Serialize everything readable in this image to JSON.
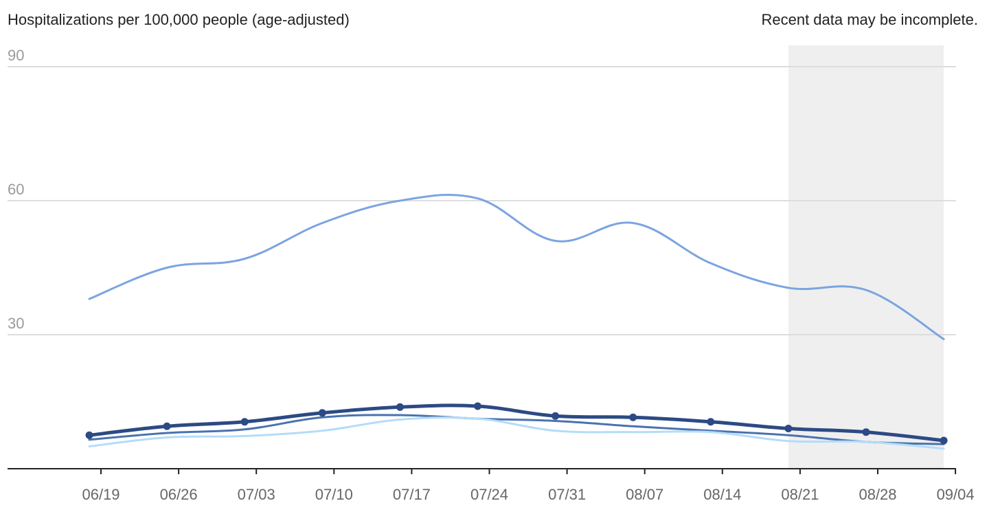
{
  "header": {
    "ylabel": "Hospitalizations per 100,000 people (age-adjusted)",
    "note": "Recent data may be incomplete."
  },
  "chart_data": {
    "type": "line",
    "ylim": [
      0,
      90
    ],
    "yticks": [
      30,
      60,
      90
    ],
    "grid": true,
    "x": [
      "06/18",
      "06/25",
      "07/02",
      "07/09",
      "07/16",
      "07/23",
      "07/30",
      "08/06",
      "08/13",
      "08/20",
      "08/27",
      "09/03"
    ],
    "xticks": [
      "06/19",
      "06/26",
      "07/03",
      "07/10",
      "07/17",
      "07/24",
      "07/31",
      "08/07",
      "08/14",
      "08/21",
      "08/28",
      "09/04"
    ],
    "incomplete_range": [
      "08/20",
      "09/03"
    ],
    "series": [
      {
        "color": "#7ba4e0",
        "width": 3,
        "markers": false,
        "values": [
          38.0,
          45.0,
          47.0,
          55.0,
          60.0,
          60.5,
          51.0,
          55.0,
          46.0,
          40.5,
          40.0,
          29.0
        ]
      },
      {
        "color": "#4a72b0",
        "width": 3,
        "markers": false,
        "values": [
          6.5,
          8.0,
          8.8,
          11.5,
          12.0,
          11.2,
          10.7,
          9.5,
          8.5,
          7.5,
          6.0,
          5.5
        ]
      },
      {
        "color": "#b3dcfa",
        "width": 3,
        "markers": false,
        "values": [
          5.0,
          7.0,
          7.3,
          8.5,
          11.0,
          11.2,
          8.5,
          8.2,
          8.2,
          6.2,
          6.0,
          4.5
        ]
      },
      {
        "color": "#2c4a84",
        "width": 5,
        "markers": true,
        "values": [
          7.5,
          9.5,
          10.5,
          12.5,
          13.8,
          14.0,
          11.8,
          11.5,
          10.5,
          9.0,
          8.2,
          6.3
        ]
      }
    ]
  }
}
